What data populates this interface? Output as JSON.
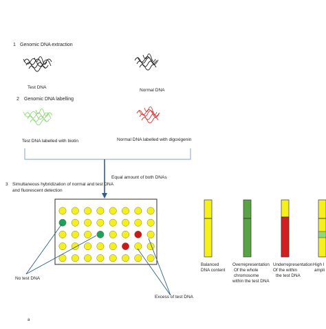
{
  "step1": {
    "number": "1",
    "label": "Genomic DNA extraction"
  },
  "test_dna_label": "Test DNA",
  "normal_dna_label": "Normal DNA",
  "step2": {
    "number": "2",
    "label": "Genomic DNA labelling"
  },
  "test_labelled": "Test DNA labelled with biotin",
  "normal_labelled": "Normal DNA labelled with digoxigenin",
  "equal_amount": "Equal amount of both DNAs",
  "step3": {
    "number": "3",
    "line1": "Simultaneous hybridization of normal and test DNA",
    "line2": "and fluorescent detection"
  },
  "no_test_dna": "No test DNA",
  "excess_test_dna": "Excess of test DNA",
  "panel_marker": "a",
  "colors": {
    "yellow": "#f5ef1c",
    "green": "#1aa35e",
    "red": "#cc1818",
    "light_green": "#7ed36a",
    "arrow": "#2e5f8a",
    "bracket": "#7fa3c6"
  },
  "microarray": {
    "rows": 5,
    "cols": 8,
    "green_spots": [
      [
        1,
        0
      ],
      [
        2,
        3
      ]
    ],
    "red_spots": [
      [
        2,
        6
      ],
      [
        3,
        5
      ]
    ]
  },
  "chromosomes": [
    {
      "label_lines": [
        "Balanced",
        "DNA content"
      ]
    },
    {
      "label_lines": [
        "Overrepresentation",
        "Of the whole",
        "chromosome",
        "within  the test DNA"
      ]
    },
    {
      "label_lines": [
        "Underrepresentation",
        "Of the within",
        "the test DNA"
      ]
    },
    {
      "label_lines": [
        "High l",
        "ampli"
      ]
    }
  ]
}
